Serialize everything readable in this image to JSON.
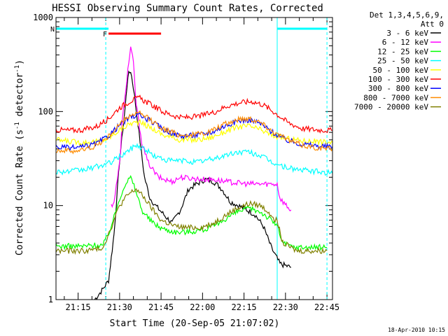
{
  "chart_data": {
    "type": "line",
    "title": "HESSI Observing Summary Count Rates, Corrected",
    "xlabel": "Start Time (20-Sep-05 21:07:02)",
    "ylabel_main": "Corrected Count Rate (s",
    "ylabel_sup1": "-1",
    "ylabel_mid": " detector",
    "ylabel_sup2": "-1",
    "ylabel_end": ")",
    "xlim": [
      "21:07",
      "22:47"
    ],
    "ylim": [
      1,
      1000
    ],
    "yscale": "log",
    "x_ticks": [
      "21:15",
      "21:30",
      "21:45",
      "22:00",
      "22:15",
      "22:30",
      "22:45"
    ],
    "y_ticks": [
      "1",
      "10",
      "100",
      "1000"
    ],
    "legend_header": [
      "Det 1,3,4,5,6,9,",
      "Att 0"
    ],
    "legend_position": "right, outside plot",
    "footer_date": "18-Apr-2010 10:15",
    "flags": [
      {
        "label": "F",
        "color": "#ff0000",
        "start": "21:26",
        "end": "21:45"
      },
      {
        "label": "N",
        "color": "#00ffff",
        "start": "21:07",
        "end": "21:26"
      },
      {
        "label": "",
        "color": "#00ffff",
        "start": "22:27",
        "end": "22:45"
      }
    ],
    "vertical_lines": [
      {
        "time": "21:07",
        "color": "#00ffff",
        "style": "solid"
      },
      {
        "time": "21:25",
        "color": "#00ffff",
        "style": "dashed"
      },
      {
        "time": "22:27",
        "color": "#00ffff",
        "style": "solid"
      },
      {
        "time": "22:45",
        "color": "#00ffff",
        "style": "dashed"
      }
    ],
    "series": [
      {
        "name": "3 - 6 keV",
        "color": "#000000",
        "points": [
          [
            "21:21",
            1
          ],
          [
            "21:24",
            1.3
          ],
          [
            "21:26",
            1.6
          ],
          [
            "21:27",
            2.8
          ],
          [
            "21:28",
            5
          ],
          [
            "21:30",
            30
          ],
          [
            "21:32",
            110
          ],
          [
            "21:33",
            240
          ],
          [
            "21:34",
            270
          ],
          [
            "21:35",
            180
          ],
          [
            "21:37",
            60
          ],
          [
            "21:39",
            20
          ],
          [
            "21:41",
            12
          ],
          [
            "21:43",
            10
          ],
          [
            "21:46",
            8
          ],
          [
            "21:49",
            6.5
          ],
          [
            "21:52",
            9
          ],
          [
            "21:55",
            15
          ],
          [
            "21:58",
            17
          ],
          [
            "22:01",
            19
          ],
          [
            "22:04",
            18
          ],
          [
            "22:07",
            15
          ],
          [
            "22:10",
            11
          ],
          [
            "22:13",
            10
          ],
          [
            "22:16",
            9
          ],
          [
            "22:19",
            8
          ],
          [
            "22:22",
            6
          ],
          [
            "22:25",
            3.5
          ],
          [
            "22:28",
            2.4
          ],
          [
            "22:32",
            2.2
          ]
        ]
      },
      {
        "name": "6 - 12 keV",
        "color": "#ff00ff",
        "points": [
          [
            "21:27",
            10
          ],
          [
            "21:28",
            11
          ],
          [
            "21:30",
            28
          ],
          [
            "21:31",
            80
          ],
          [
            "21:33",
            280
          ],
          [
            "21:34",
            480
          ],
          [
            "21:35",
            330
          ],
          [
            "21:36",
            120
          ],
          [
            "21:38",
            48
          ],
          [
            "21:40",
            30
          ],
          [
            "21:42",
            24
          ],
          [
            "21:44",
            20
          ],
          [
            "21:46",
            19
          ],
          [
            "21:49",
            18
          ],
          [
            "21:52",
            20
          ],
          [
            "21:56",
            19.5
          ],
          [
            "22:00",
            19
          ],
          [
            "22:04",
            19
          ],
          [
            "22:08",
            18
          ],
          [
            "22:12",
            17.5
          ],
          [
            "22:16",
            17
          ],
          [
            "22:20",
            17
          ],
          [
            "22:24",
            17
          ],
          [
            "22:27",
            17
          ],
          [
            "22:28",
            12
          ],
          [
            "22:31",
            9.5
          ],
          [
            "22:32",
            9
          ]
        ]
      },
      {
        "name": "12 - 25 keV",
        "color": "#00ff00",
        "points": [
          [
            "21:07",
            3.7
          ],
          [
            "21:12",
            3.7
          ],
          [
            "21:17",
            3.7
          ],
          [
            "21:21",
            3.8
          ],
          [
            "21:24",
            3.8
          ],
          [
            "21:26",
            5
          ],
          [
            "21:28",
            7.5
          ],
          [
            "21:30",
            12
          ],
          [
            "21:32",
            17
          ],
          [
            "21:34",
            20
          ],
          [
            "21:36",
            14
          ],
          [
            "21:38",
            9
          ],
          [
            "21:41",
            7
          ],
          [
            "21:44",
            6
          ],
          [
            "21:47",
            5.5
          ],
          [
            "21:51",
            5.2
          ],
          [
            "21:56",
            5.3
          ],
          [
            "22:01",
            5.6
          ],
          [
            "22:05",
            6.2
          ],
          [
            "22:09",
            7.5
          ],
          [
            "22:13",
            8.7
          ],
          [
            "22:17",
            9.3
          ],
          [
            "22:21",
            8.6
          ],
          [
            "22:24",
            7.3
          ],
          [
            "22:27",
            6.2
          ],
          [
            "22:29",
            4
          ],
          [
            "22:33",
            3.6
          ],
          [
            "22:39",
            3.6
          ],
          [
            "22:45",
            3.6
          ]
        ]
      },
      {
        "name": "25 - 50 keV",
        "color": "#00ffff",
        "points": [
          [
            "21:07",
            23
          ],
          [
            "21:12",
            23
          ],
          [
            "21:17",
            24
          ],
          [
            "21:22",
            26
          ],
          [
            "21:26",
            28
          ],
          [
            "21:30",
            33
          ],
          [
            "21:33",
            38
          ],
          [
            "21:36",
            44
          ],
          [
            "21:39",
            40
          ],
          [
            "21:43",
            33
          ],
          [
            "21:48",
            30
          ],
          [
            "21:53",
            30
          ],
          [
            "21:58",
            29
          ],
          [
            "22:03",
            31
          ],
          [
            "22:08",
            34
          ],
          [
            "22:13",
            37
          ],
          [
            "22:17",
            37
          ],
          [
            "22:21",
            34
          ],
          [
            "22:25",
            29
          ],
          [
            "22:29",
            26
          ],
          [
            "22:35",
            24
          ],
          [
            "22:41",
            23
          ],
          [
            "22:47",
            22
          ]
        ]
      },
      {
        "name": "50 - 100 keV",
        "color": "#ffff00",
        "points": [
          [
            "21:07",
            50
          ],
          [
            "21:12",
            48
          ],
          [
            "21:17",
            47
          ],
          [
            "21:22",
            48
          ],
          [
            "21:26",
            52
          ],
          [
            "21:30",
            64
          ],
          [
            "21:34",
            75
          ],
          [
            "21:37",
            77
          ],
          [
            "21:41",
            68
          ],
          [
            "21:46",
            56
          ],
          [
            "21:52",
            50
          ],
          [
            "21:58",
            50
          ],
          [
            "22:03",
            53
          ],
          [
            "22:08",
            61
          ],
          [
            "22:13",
            69
          ],
          [
            "22:17",
            70
          ],
          [
            "22:21",
            64
          ],
          [
            "22:25",
            56
          ],
          [
            "22:30",
            52
          ],
          [
            "22:36",
            49
          ],
          [
            "22:42",
            48
          ],
          [
            "22:47",
            47
          ]
        ]
      },
      {
        "name": "100 - 300 keV",
        "color": "#ff0000",
        "points": [
          [
            "21:07",
            64
          ],
          [
            "21:12",
            63
          ],
          [
            "21:17",
            64
          ],
          [
            "21:22",
            70
          ],
          [
            "21:26",
            84
          ],
          [
            "21:30",
            110
          ],
          [
            "21:34",
            130
          ],
          [
            "21:37",
            140
          ],
          [
            "21:41",
            120
          ],
          [
            "21:46",
            98
          ],
          [
            "21:52",
            86
          ],
          [
            "21:58",
            88
          ],
          [
            "22:04",
            98
          ],
          [
            "22:09",
            115
          ],
          [
            "22:14",
            125
          ],
          [
            "22:18",
            128
          ],
          [
            "22:22",
            118
          ],
          [
            "22:26",
            98
          ],
          [
            "22:31",
            76
          ],
          [
            "22:36",
            66
          ],
          [
            "22:41",
            64
          ],
          [
            "22:47",
            63
          ]
        ]
      },
      {
        "name": "300 - 800 keV",
        "color": "#0000ff",
        "points": [
          [
            "21:07",
            42
          ],
          [
            "21:12",
            41
          ],
          [
            "21:17",
            42
          ],
          [
            "21:22",
            46
          ],
          [
            "21:26",
            55
          ],
          [
            "21:30",
            72
          ],
          [
            "21:34",
            88
          ],
          [
            "21:37",
            92
          ],
          [
            "21:41",
            80
          ],
          [
            "21:46",
            64
          ],
          [
            "21:52",
            55
          ],
          [
            "21:58",
            56
          ],
          [
            "22:03",
            60
          ],
          [
            "22:08",
            70
          ],
          [
            "22:13",
            80
          ],
          [
            "22:17",
            82
          ],
          [
            "22:21",
            74
          ],
          [
            "22:25",
            61
          ],
          [
            "22:30",
            50
          ],
          [
            "22:36",
            45
          ],
          [
            "22:42",
            43
          ],
          [
            "22:47",
            42
          ]
        ]
      },
      {
        "name": "800 - 7000 keV",
        "color": "#ff8c00",
        "points": [
          [
            "21:07",
            39
          ],
          [
            "21:12",
            38
          ],
          [
            "21:17",
            39
          ],
          [
            "21:22",
            44
          ],
          [
            "21:26",
            54
          ],
          [
            "21:30",
            73
          ],
          [
            "21:34",
            92
          ],
          [
            "21:37",
            96
          ],
          [
            "21:41",
            82
          ],
          [
            "21:46",
            65
          ],
          [
            "21:52",
            56
          ],
          [
            "21:58",
            57
          ],
          [
            "22:03",
            62
          ],
          [
            "22:08",
            73
          ],
          [
            "22:13",
            83
          ],
          [
            "22:17",
            85
          ],
          [
            "22:21",
            77
          ],
          [
            "22:25",
            63
          ],
          [
            "22:30",
            51
          ],
          [
            "22:36",
            44
          ],
          [
            "22:42",
            41
          ],
          [
            "22:47",
            40
          ]
        ]
      },
      {
        "name": "7000 - 20000 keV",
        "color": "#808000",
        "points": [
          [
            "21:07",
            3.3
          ],
          [
            "21:12",
            3.3
          ],
          [
            "21:17",
            3.3
          ],
          [
            "21:21",
            3.4
          ],
          [
            "21:24",
            3.6
          ],
          [
            "21:26",
            5
          ],
          [
            "21:28",
            7
          ],
          [
            "21:30",
            10
          ],
          [
            "21:33",
            13
          ],
          [
            "21:36",
            15
          ],
          [
            "21:39",
            12
          ],
          [
            "21:42",
            9
          ],
          [
            "21:45",
            7
          ],
          [
            "21:50",
            6
          ],
          [
            "21:55",
            5.8
          ],
          [
            "22:00",
            5.9
          ],
          [
            "22:04",
            6.5
          ],
          [
            "22:08",
            7.8
          ],
          [
            "22:13",
            9.5
          ],
          [
            "22:17",
            10.5
          ],
          [
            "22:21",
            10
          ],
          [
            "22:24",
            8.5
          ],
          [
            "22:27",
            6.8
          ],
          [
            "22:29",
            4
          ],
          [
            "22:34",
            3.3
          ],
          [
            "22:40",
            3.3
          ],
          [
            "22:45",
            3.3
          ]
        ]
      }
    ]
  }
}
